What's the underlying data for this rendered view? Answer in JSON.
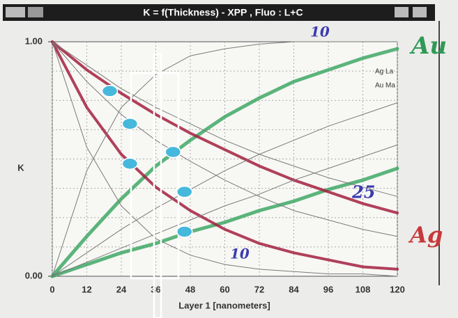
{
  "chart_data": {
    "type": "line",
    "title": "K = f(Thickness) - XPP , Fluo : L+C",
    "x_label": "Layer 1 [nanometers]",
    "y_label": "K",
    "x": [
      0,
      12,
      24,
      36,
      48,
      60,
      72,
      84,
      96,
      108,
      120
    ],
    "xlim": [
      0,
      120
    ],
    "xticks": [
      0,
      12,
      24,
      36,
      48,
      60,
      72,
      84,
      96,
      108,
      120
    ],
    "ylim": [
      0,
      1
    ],
    "yticks": [
      {
        "value": 0,
        "label": "0.00"
      },
      {
        "value": 1,
        "label": "1.00"
      }
    ],
    "grid": true,
    "legend": [
      "Ag La",
      "Au Ma"
    ],
    "series": [
      {
        "color": "#3fa865",
        "line_width": 5,
        "values": [
          0,
          0.17,
          0.33,
          0.47,
          0.58,
          0.68,
          0.76,
          0.83,
          0.88,
          0.93,
          0.97
        ]
      },
      {
        "color": "#3fa865",
        "line_width": 5,
        "values": [
          0,
          0.05,
          0.1,
          0.14,
          0.19,
          0.23,
          0.28,
          0.32,
          0.37,
          0.41,
          0.46
        ]
      },
      {
        "color": "#a3203e",
        "line_width": 4,
        "values": [
          1,
          0.88,
          0.78,
          0.69,
          0.61,
          0.54,
          0.47,
          0.41,
          0.36,
          0.31,
          0.27
        ]
      },
      {
        "color": "#a3203e",
        "line_width": 4,
        "values": [
          1,
          0.72,
          0.52,
          0.38,
          0.28,
          0.2,
          0.14,
          0.1,
          0.07,
          0.04,
          0.03
        ]
      },
      {
        "color": "#7a7a7a",
        "line_width": 1,
        "values": [
          0,
          0.45,
          0.72,
          0.86,
          0.94,
          0.97,
          0.99,
          1,
          1,
          1,
          1
        ]
      },
      {
        "color": "#7a7a7a",
        "line_width": 1,
        "values": [
          1,
          0.55,
          0.3,
          0.16,
          0.09,
          0.05,
          0.03,
          0.02,
          0.01,
          0.01,
          0
        ]
      },
      {
        "color": "#7a7a7a",
        "line_width": 1,
        "values": [
          0,
          0.1,
          0.2,
          0.29,
          0.37,
          0.45,
          0.52,
          0.58,
          0.64,
          0.69,
          0.74
        ]
      },
      {
        "color": "#7a7a7a",
        "line_width": 1,
        "values": [
          0,
          0.06,
          0.12,
          0.18,
          0.24,
          0.3,
          0.35,
          0.41,
          0.46,
          0.51,
          0.56
        ]
      },
      {
        "color": "#7a7a7a",
        "line_width": 1,
        "values": [
          1,
          0.83,
          0.69,
          0.58,
          0.49,
          0.41,
          0.34,
          0.28,
          0.24,
          0.2,
          0.17
        ]
      },
      {
        "color": "#7a7a7a",
        "line_width": 1,
        "values": [
          1,
          0.9,
          0.8,
          0.72,
          0.65,
          0.58,
          0.52,
          0.47,
          0.42,
          0.38,
          0.34
        ]
      }
    ],
    "highlight_points": {
      "color": "#46b8dc",
      "x": [
        20,
        27,
        27,
        42,
        46,
        46
      ],
      "y": [
        0.79,
        0.65,
        0.48,
        0.53,
        0.36,
        0.19
      ]
    },
    "annotations": [
      {
        "text": "Au",
        "color": "#2f9a55"
      },
      {
        "text": "Ag",
        "color": "#c8383a"
      },
      {
        "text": "10",
        "color": "#3b3bb0"
      },
      {
        "text": "25",
        "color": "#3b3bb0"
      },
      {
        "text": "10",
        "color": "#3b3bb0"
      }
    ]
  }
}
